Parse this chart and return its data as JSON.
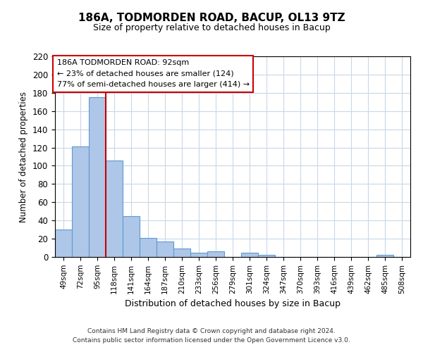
{
  "title": "186A, TODMORDEN ROAD, BACUP, OL13 9TZ",
  "subtitle": "Size of property relative to detached houses in Bacup",
  "xlabel": "Distribution of detached houses by size in Bacup",
  "ylabel": "Number of detached properties",
  "bin_labels": [
    "49sqm",
    "72sqm",
    "95sqm",
    "118sqm",
    "141sqm",
    "164sqm",
    "187sqm",
    "210sqm",
    "233sqm",
    "256sqm",
    "279sqm",
    "301sqm",
    "324sqm",
    "347sqm",
    "370sqm",
    "393sqm",
    "416sqm",
    "439sqm",
    "462sqm",
    "485sqm",
    "508sqm"
  ],
  "bar_values": [
    30,
    121,
    175,
    106,
    45,
    21,
    17,
    9,
    5,
    6,
    0,
    5,
    2,
    0,
    0,
    0,
    0,
    0,
    0,
    2,
    0
  ],
  "bar_color": "#aec6e8",
  "bar_edgecolor": "#5b9bd5",
  "vline_x": 2,
  "vline_color": "#cc0000",
  "ylim": [
    0,
    220
  ],
  "yticks": [
    0,
    20,
    40,
    60,
    80,
    100,
    120,
    140,
    160,
    180,
    200,
    220
  ],
  "annotation_box_text": "186A TODMORDEN ROAD: 92sqm\n← 23% of detached houses are smaller (124)\n77% of semi-detached houses are larger (414) →",
  "footer_line1": "Contains HM Land Registry data © Crown copyright and database right 2024.",
  "footer_line2": "Contains public sector information licensed under the Open Government Licence v3.0.",
  "background_color": "#ffffff",
  "grid_color": "#c8d8e8",
  "fig_width": 6.0,
  "fig_height": 5.0
}
